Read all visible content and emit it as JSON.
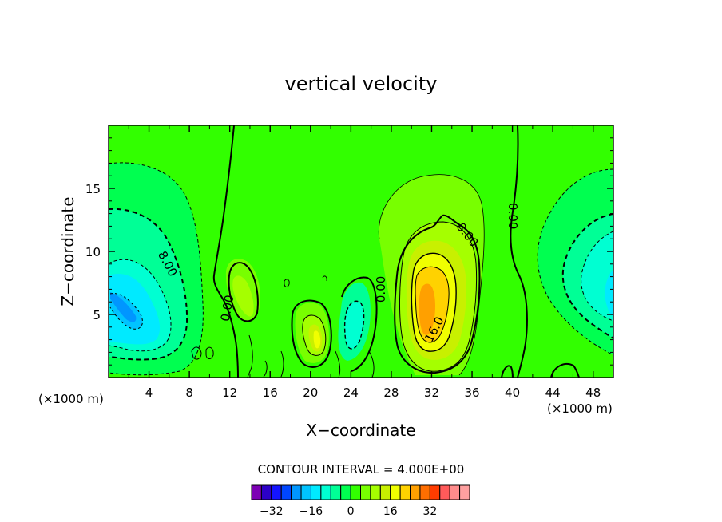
{
  "chart_data": {
    "type": "contour",
    "title": "vertical velocity",
    "xlabel": "X−coordinate",
    "ylabel": "Z−coordinate",
    "x_unit_left": "(×1000 m)",
    "x_unit_right": "(×1000 m)",
    "xlim": [
      0,
      50
    ],
    "ylim": [
      0,
      20
    ],
    "x_ticks": [
      4,
      8,
      12,
      16,
      20,
      24,
      28,
      32,
      36,
      40,
      44,
      48
    ],
    "y_ticks": [
      5,
      10,
      15
    ],
    "contour_interval_text": "CONTOUR INTERVAL = 4.000E+00",
    "contour_interval": 4,
    "contour_labels": [
      {
        "text": "0.00",
        "x": 11.8,
        "y": 5.5,
        "angle": -80
      },
      {
        "text": "8.00",
        "x": 5.8,
        "y": 9.0,
        "angle": 62
      },
      {
        "text": "0.00",
        "x": 27.0,
        "y": 7.0,
        "angle": -90
      },
      {
        "text": "8.00",
        "x": 35.5,
        "y": 11.3,
        "angle": 52
      },
      {
        "text": "16.0",
        "x": 32.3,
        "y": 3.8,
        "angle": -62
      },
      {
        "text": "0.00",
        "x": 40.0,
        "y": 12.8,
        "angle": 90
      }
    ],
    "features": [
      {
        "kind": "downdraft",
        "x": 1.5,
        "y": 5.5,
        "value": -20
      },
      {
        "kind": "downdraft",
        "x": 48.5,
        "y": 7.5,
        "value": -12
      },
      {
        "kind": "updraft",
        "x": 31.0,
        "y": 6.0,
        "value": 22
      },
      {
        "kind": "updraft",
        "x": 21.0,
        "y": 3.0,
        "value": 12
      },
      {
        "kind": "downdraft",
        "x": 24.0,
        "y": 4.0,
        "value": -10
      }
    ],
    "colorbar": {
      "tick_labels": [
        "−32",
        "−16",
        "0",
        "16",
        "32"
      ],
      "tick_values": [
        -32,
        -16,
        0,
        16,
        32
      ],
      "boundaries_from": -40,
      "step": 4,
      "colors": [
        "#7c00b4",
        "#2c00c8",
        "#1414ff",
        "#0046ff",
        "#0096ff",
        "#00c3ff",
        "#00eaff",
        "#00ffd2",
        "#00ff96",
        "#00ff50",
        "#32ff00",
        "#78ff00",
        "#a5ff00",
        "#c8f000",
        "#f0ff00",
        "#ffd200",
        "#ffa000",
        "#ff6e00",
        "#ff3c00",
        "#ff5a5a",
        "#ff8c8c",
        "#ffa0a0"
      ]
    }
  }
}
